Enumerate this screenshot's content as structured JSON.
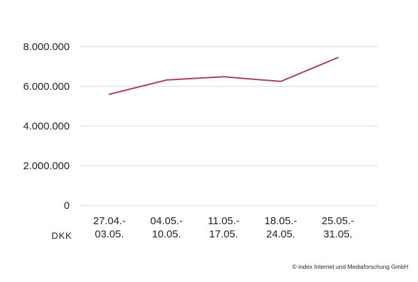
{
  "chart_data": {
    "type": "line",
    "title": "",
    "xlabel": "",
    "ylabel": "",
    "unit_label": "DKK",
    "categories": [
      [
        "27.04.-",
        "03.05."
      ],
      [
        "04.05.-",
        "10.05."
      ],
      [
        "11.05.-",
        "17.05."
      ],
      [
        "18.05.-",
        "24.05."
      ],
      [
        "25.05.-",
        "31.05."
      ]
    ],
    "series": [
      {
        "name": "DKK",
        "color": "#a8415b",
        "values": [
          5600000,
          6320000,
          6480000,
          6250000,
          7450000
        ]
      }
    ],
    "ylim": [
      0,
      8000000
    ],
    "yticks": [
      {
        "value": 0,
        "label": "0"
      },
      {
        "value": 2000000,
        "label": "2.000.000"
      },
      {
        "value": 4000000,
        "label": "4.000.000"
      },
      {
        "value": 6000000,
        "label": "6.000.000"
      },
      {
        "value": 8000000,
        "label": "8.000.000"
      }
    ],
    "grid": true,
    "gridColor": "#d9d9d9"
  },
  "credit": "© index Internet und Mediaforschung GmbH"
}
